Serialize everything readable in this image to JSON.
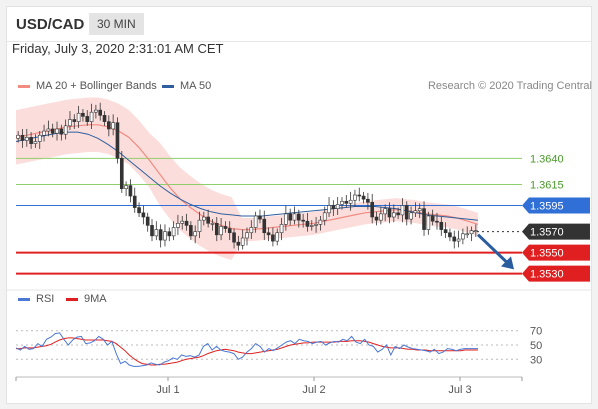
{
  "header": {
    "pair": "USD/CAD",
    "timeframe": "30 MIN"
  },
  "datetime": "Friday, July 3, 2020 2:31:01 AM CET",
  "legend_main": [
    {
      "label": "MA 20 + Bollinger Bands",
      "color": "#f28b82"
    },
    {
      "label": "MA 50",
      "color": "#2f5f9f"
    }
  ],
  "credit": "Research © 2020 Trading Central",
  "legend_rsi": [
    {
      "label": "RSI",
      "color": "#4a78d4"
    },
    {
      "label": "9MA",
      "color": "#e02020"
    }
  ],
  "colors": {
    "support": "#e02020",
    "resistance": "#8fcf6a",
    "pivot": "#2f6fd6",
    "current": "#333333",
    "arrow": "#2a5d9e"
  },
  "chart_data": [
    {
      "type": "candlestick",
      "ylim": [
        1.3522,
        1.3688
      ],
      "x_labels": [
        "Jul 1",
        "Jul 2",
        "Jul 3"
      ],
      "levels": [
        {
          "value": 1.364,
          "label": "1.3640",
          "kind": "resistance"
        },
        {
          "value": 1.3615,
          "label": "1.3615",
          "kind": "resistance"
        },
        {
          "value": 1.3595,
          "label": "1.3595",
          "kind": "pivot"
        },
        {
          "value": 1.357,
          "label": "1.3570",
          "kind": "current"
        },
        {
          "value": 1.355,
          "label": "1.3550",
          "kind": "support"
        },
        {
          "value": 1.353,
          "label": "1.3530",
          "kind": "support"
        }
      ],
      "close_series": [
        1.3662,
        1.3657,
        1.366,
        1.3654,
        1.3656,
        1.3662,
        1.3666,
        1.3668,
        1.3664,
        1.3668,
        1.3663,
        1.3671,
        1.3677,
        1.3675,
        1.3683,
        1.368,
        1.3675,
        1.3684,
        1.3686,
        1.3681,
        1.3675,
        1.3668,
        1.3674,
        1.364,
        1.3611,
        1.3614,
        1.3604,
        1.3593,
        1.3588,
        1.3584,
        1.3576,
        1.3566,
        1.3572,
        1.3562,
        1.357,
        1.3566,
        1.3574,
        1.3578,
        1.358,
        1.3576,
        1.3566,
        1.357,
        1.3581,
        1.3584,
        1.3578,
        1.3578,
        1.3567,
        1.3575,
        1.3573,
        1.3569,
        1.356,
        1.3557,
        1.3564,
        1.3569,
        1.3574,
        1.3585,
        1.3582,
        1.3569,
        1.3567,
        1.3561,
        1.3569,
        1.3577,
        1.3587,
        1.3581,
        1.3587,
        1.3581,
        1.358,
        1.3575,
        1.3576,
        1.3577,
        1.3581,
        1.3588,
        1.3595,
        1.3592,
        1.3596,
        1.3599,
        1.3597,
        1.36,
        1.3605,
        1.3604,
        1.3601,
        1.3598,
        1.3584,
        1.3581,
        1.3587,
        1.3592,
        1.3584,
        1.3588,
        1.3586,
        1.3595,
        1.3582,
        1.3588,
        1.359,
        1.3592,
        1.3572,
        1.3585,
        1.358,
        1.3579,
        1.3572,
        1.3569,
        1.3565,
        1.3561,
        1.3563,
        1.3568,
        1.3568,
        1.3571,
        1.3571
      ],
      "ma20": [
        1.366,
        1.3662,
        1.3664,
        1.3666,
        1.3668,
        1.367,
        1.3671,
        1.3672,
        1.3672,
        1.367,
        1.3666,
        1.366,
        1.365,
        1.3638,
        1.3625,
        1.3612,
        1.3601,
        1.3593,
        1.3586,
        1.358,
        1.3576,
        1.3573,
        1.3572,
        1.3572,
        1.3573,
        1.3574,
        1.3575,
        1.3576,
        1.3577,
        1.3578,
        1.358,
        1.3582,
        1.3584,
        1.3586,
        1.3588,
        1.3589,
        1.359,
        1.3591,
        1.359,
        1.3589,
        1.3587,
        1.3586,
        1.3585,
        1.3583,
        1.358,
        1.3577
      ],
      "ma50": [
        1.3656,
        1.3658,
        1.366,
        1.3662,
        1.3664,
        1.3665,
        1.3665,
        1.3663,
        1.3659,
        1.3653,
        1.3646,
        1.3638,
        1.363,
        1.3622,
        1.3614,
        1.3607,
        1.3601,
        1.3596,
        1.3592,
        1.3589,
        1.3587,
        1.3586,
        1.3585,
        1.3585,
        1.3585,
        1.3586,
        1.3587,
        1.3588,
        1.3589,
        1.359,
        1.3591,
        1.3592,
        1.3593,
        1.3594,
        1.3594,
        1.3594,
        1.3593,
        1.3592,
        1.359,
        1.3588,
        1.3586,
        1.3585,
        1.3584,
        1.3583,
        1.3582,
        1.3581
      ]
    },
    {
      "type": "line",
      "ylim": [
        15,
        85
      ],
      "y_ticks": [
        70,
        50,
        30
      ],
      "x_labels": [
        "Jul 1",
        "Jul 2",
        "Jul 3"
      ],
      "series": [
        {
          "name": "RSI",
          "values": [
            46,
            43,
            48,
            44,
            45,
            52,
            48,
            58,
            61,
            66,
            67,
            58,
            50,
            57,
            61,
            62,
            52,
            53,
            56,
            62,
            58,
            50,
            55,
            38,
            24,
            27,
            22,
            20,
            20,
            21,
            22,
            25,
            23,
            22,
            26,
            28,
            32,
            30,
            36,
            34,
            35,
            33,
            36,
            48,
            52,
            43,
            48,
            43,
            41,
            40,
            38,
            30,
            33,
            40,
            45,
            52,
            48,
            40,
            45,
            42,
            46,
            50,
            54,
            56,
            52,
            58,
            56,
            55,
            52,
            54,
            55,
            50,
            53,
            55,
            54,
            58,
            56,
            62,
            54,
            52,
            58,
            50,
            48,
            40,
            44,
            50,
            36,
            48,
            45,
            50,
            47,
            45,
            44,
            43,
            42,
            40,
            44,
            38,
            40,
            45,
            44,
            42,
            44,
            45,
            45,
            45,
            45
          ]
        },
        {
          "name": "9MA",
          "values": [
            45,
            45,
            46,
            46,
            46,
            47,
            48,
            49,
            51,
            54,
            57,
            59,
            60,
            60,
            59,
            58,
            57,
            57,
            57,
            57,
            57,
            56,
            55,
            52,
            47,
            42,
            36,
            31,
            27,
            24,
            23,
            22,
            22,
            23,
            23,
            24,
            25,
            26,
            28,
            30,
            31,
            32,
            33,
            35,
            38,
            40,
            42,
            43,
            44,
            43,
            42,
            40,
            39,
            38,
            38,
            39,
            40,
            41,
            42,
            43,
            44,
            46,
            48,
            50,
            51,
            52,
            53,
            53,
            54,
            54,
            54,
            54,
            54,
            54,
            55,
            55,
            55,
            56,
            56,
            56,
            55,
            54,
            52,
            50,
            48,
            47,
            46,
            46,
            46,
            45,
            44,
            44,
            43,
            43,
            43,
            42,
            42,
            42,
            42,
            42,
            42,
            42,
            42,
            43,
            43,
            43,
            43
          ]
        }
      ]
    }
  ]
}
